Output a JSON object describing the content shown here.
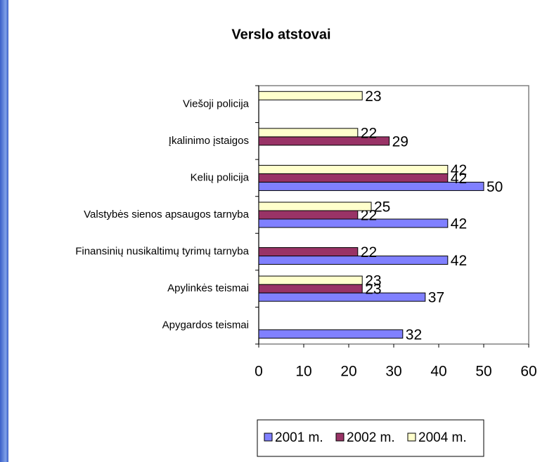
{
  "chart_data": {
    "type": "bar",
    "orientation": "horizontal",
    "title": "Verslo atstovai",
    "categories": [
      "Viešoji policija",
      "Įkalinimo įstaigos",
      "Kelių policija",
      "Valstybės sienos apsaugos tarnyba",
      "Finansinių nusikaltimų tyrimų tarnyba",
      "Apylinkės teismai",
      "Apygardos teismai"
    ],
    "series": [
      {
        "name": "2001 m.",
        "color": "#8080ff",
        "values": [
          null,
          null,
          50,
          42,
          42,
          37,
          32
        ]
      },
      {
        "name": "2002 m.",
        "color": "#993366",
        "values": [
          null,
          29,
          42,
          22,
          22,
          23,
          null
        ]
      },
      {
        "name": "2004 m.",
        "color": "#ffffcc",
        "values": [
          23,
          22,
          42,
          25,
          null,
          23,
          null
        ]
      }
    ],
    "xlim": [
      0,
      60
    ],
    "xticks": [
      0,
      10,
      20,
      30,
      40,
      50,
      60
    ],
    "grid": false,
    "legend": "bottom"
  }
}
